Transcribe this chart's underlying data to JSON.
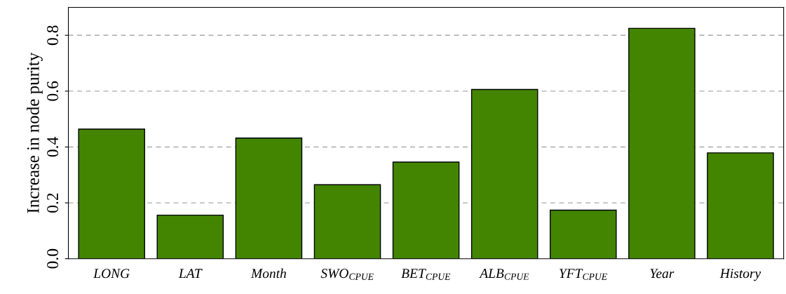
{
  "chart_data": {
    "type": "bar",
    "ylabel": "Increase in node purity",
    "categories": [
      "LONG",
      "LAT",
      "Month",
      "SWO$_{CPUE}$",
      "BET$_{CPUE}$",
      "ALB$_{CPUE}$",
      "YFT$_{CPUE}$",
      "Year",
      "History"
    ],
    "values": [
      0.464,
      0.156,
      0.432,
      0.265,
      0.346,
      0.606,
      0.174,
      0.825,
      0.379
    ],
    "color": "#438500",
    "ylim": [
      0,
      0.9
    ],
    "yticks": [
      {
        "value": 0,
        "label": "0.0"
      },
      0.2,
      0.4,
      0.6,
      0.8
    ],
    "grid": "y"
  }
}
